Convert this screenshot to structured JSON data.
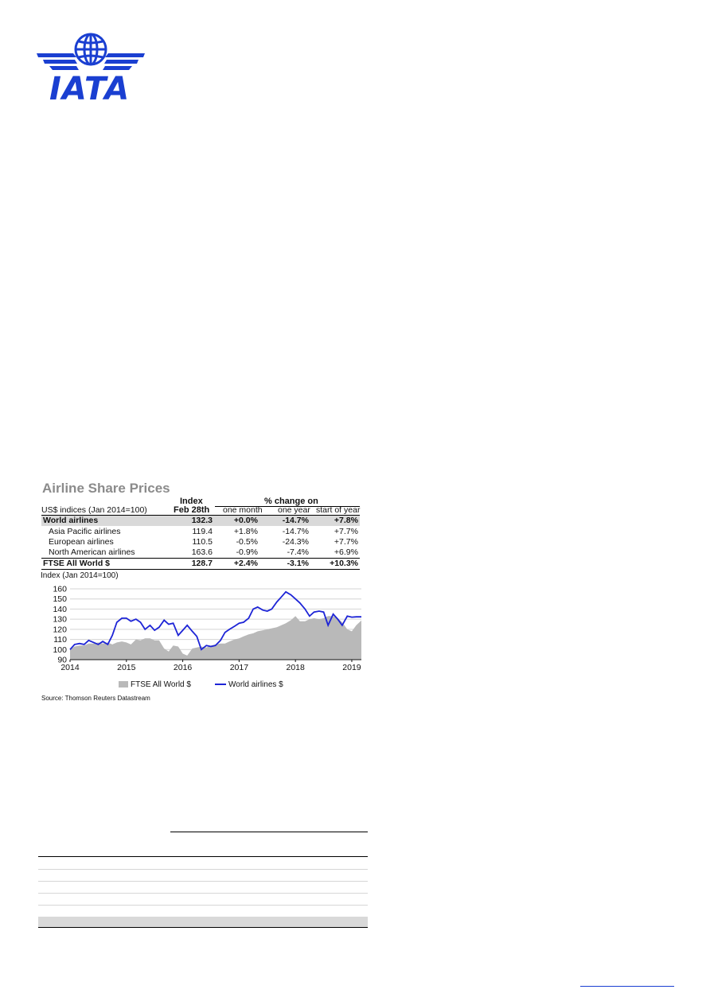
{
  "logo": {
    "text": "IATA",
    "color": "#1a3fd1"
  },
  "figure": {
    "title": "Airline Share Prices",
    "table": {
      "header_index_line1": "Index",
      "header_index_line2": "Feb 28th",
      "header_change": "% change on",
      "subheader_basis": "US$ indices (Jan 2014=100)",
      "col_month": "one month",
      "col_year": "one year",
      "col_start": "start of year",
      "rows": [
        {
          "name": "World airlines",
          "index": "132.3",
          "month": "+0.0%",
          "year": "-14.7%",
          "start": "+7.8%"
        },
        {
          "name": "Asia Pacific airlines",
          "index": "119.4",
          "month": "+1.8%",
          "year": "-14.7%",
          "start": "+7.7%"
        },
        {
          "name": "European airlines",
          "index": "110.5",
          "month": "-0.5%",
          "year": "-24.3%",
          "start": "+7.7%"
        },
        {
          "name": "North American airlines",
          "index": "163.6",
          "month": "-0.9%",
          "year": "-7.4%",
          "start": "+6.9%"
        },
        {
          "name": "FTSE All World $",
          "index": "128.7",
          "month": "+2.4%",
          "year": "-3.1%",
          "start": "+10.3%"
        }
      ]
    },
    "source": "Source: Thomson Reuters Datastream"
  },
  "chart_data": {
    "type": "area",
    "title": "",
    "ylabel": "Index (Jan 2014=100)",
    "xlabel": "",
    "ylim": [
      90,
      160
    ],
    "xlim": [
      2014,
      2019.17
    ],
    "x_ticks": [
      "2014",
      "2015",
      "2016",
      "2017",
      "2018",
      "2019"
    ],
    "y_ticks": [
      "160",
      "150",
      "140",
      "130",
      "120",
      "110",
      "100",
      "90"
    ],
    "series": [
      {
        "name": "FTSE All World $",
        "style": "area",
        "color": "#b9b9b9",
        "x": [
          2014.0,
          2014.08,
          2014.17,
          2014.25,
          2014.33,
          2014.42,
          2014.5,
          2014.58,
          2014.67,
          2014.75,
          2014.83,
          2014.92,
          2015.0,
          2015.08,
          2015.17,
          2015.25,
          2015.33,
          2015.42,
          2015.5,
          2015.58,
          2015.67,
          2015.75,
          2015.83,
          2015.92,
          2016.0,
          2016.08,
          2016.17,
          2016.25,
          2016.33,
          2016.42,
          2016.5,
          2016.58,
          2016.67,
          2016.75,
          2016.83,
          2016.92,
          2017.0,
          2017.08,
          2017.17,
          2017.25,
          2017.33,
          2017.42,
          2017.5,
          2017.58,
          2017.67,
          2017.75,
          2017.83,
          2017.92,
          2018.0,
          2018.08,
          2018.17,
          2018.25,
          2018.33,
          2018.42,
          2018.5,
          2018.58,
          2018.67,
          2018.75,
          2018.83,
          2018.92,
          2019.0,
          2019.08,
          2019.17
        ],
        "values": [
          100,
          103,
          104,
          104,
          106,
          106,
          107,
          106,
          107,
          105,
          107,
          108,
          107,
          105,
          110,
          109,
          111,
          111,
          109,
          109,
          101,
          98,
          104,
          103,
          96,
          94,
          101,
          102,
          103,
          102,
          104,
          105,
          106,
          106,
          108,
          110,
          111,
          113,
          115,
          116,
          118,
          119,
          120,
          121,
          122,
          124,
          126,
          129,
          133,
          128,
          128,
          130,
          131,
          130,
          131,
          133,
          133,
          131,
          127,
          120,
          118,
          124,
          128.7
        ]
      },
      {
        "name": "World airlines $",
        "style": "line",
        "color": "#1d24d6",
        "x": [
          2014.0,
          2014.08,
          2014.17,
          2014.25,
          2014.33,
          2014.42,
          2014.5,
          2014.58,
          2014.67,
          2014.75,
          2014.83,
          2014.92,
          2015.0,
          2015.08,
          2015.17,
          2015.25,
          2015.33,
          2015.42,
          2015.5,
          2015.58,
          2015.67,
          2015.75,
          2015.83,
          2015.92,
          2016.0,
          2016.08,
          2016.17,
          2016.25,
          2016.33,
          2016.42,
          2016.5,
          2016.58,
          2016.67,
          2016.75,
          2016.83,
          2016.92,
          2017.0,
          2017.08,
          2017.17,
          2017.25,
          2017.33,
          2017.42,
          2017.5,
          2017.58,
          2017.67,
          2017.75,
          2017.83,
          2017.92,
          2018.0,
          2018.08,
          2018.17,
          2018.25,
          2018.33,
          2018.42,
          2018.5,
          2018.58,
          2018.67,
          2018.75,
          2018.83,
          2018.92,
          2019.0,
          2019.08,
          2019.17
        ],
        "values": [
          100,
          105,
          106,
          105,
          109,
          107,
          105,
          108,
          105,
          114,
          127,
          131,
          131,
          128,
          130,
          127,
          120,
          124,
          119,
          122,
          129,
          125,
          126,
          114,
          119,
          124,
          118,
          113,
          100,
          104,
          103,
          104,
          109,
          117,
          120,
          123,
          126,
          127,
          131,
          140,
          142,
          139,
          138,
          140,
          147,
          152,
          157,
          154,
          150,
          146,
          140,
          133,
          137,
          138,
          137,
          124,
          135,
          130,
          124,
          133,
          132,
          132.3,
          132.3
        ]
      }
    ],
    "legend_position": "bottom",
    "grid": true
  },
  "colors": {
    "brand_blue": "#1a3fd1",
    "table_shade": "#d9d9d9"
  }
}
